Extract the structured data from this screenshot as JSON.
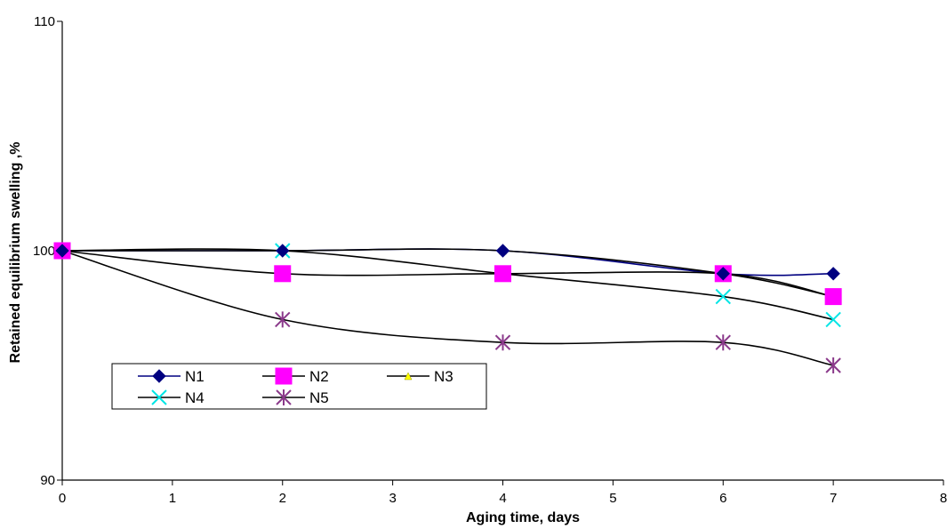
{
  "chart_data": {
    "type": "line",
    "title": "",
    "xlabel": "Aging time, days",
    "ylabel": "Retained equilibrium swelling ,%",
    "xlim": [
      0,
      8
    ],
    "ylim": [
      90,
      110
    ],
    "x_ticks": [
      "0",
      "1",
      "2",
      "3",
      "4",
      "5",
      "6",
      "7",
      "8"
    ],
    "y_ticks": [
      "90",
      "100",
      "110"
    ],
    "grid": false,
    "legend_position": "lower-left",
    "series": [
      {
        "name": "N1",
        "x": [
          0,
          2,
          4,
          6,
          7
        ],
        "y": [
          100,
          100,
          100,
          99,
          99
        ],
        "color": "#000080",
        "line_color": "#000080",
        "marker": "diamond"
      },
      {
        "name": "N2",
        "x": [
          0,
          2,
          4,
          6,
          7
        ],
        "y": [
          100,
          99,
          99,
          99,
          98
        ],
        "color": "#ff00ff",
        "line_color": "#000000",
        "marker": "square"
      },
      {
        "name": "N3",
        "x": [
          0,
          2,
          4,
          6,
          7
        ],
        "y": [
          100,
          100,
          100,
          99,
          98
        ],
        "color": "#ffff00",
        "line_color": "#000000",
        "marker": "triangle"
      },
      {
        "name": "N4",
        "x": [
          0,
          2,
          4,
          6,
          7
        ],
        "y": [
          100,
          100,
          99,
          98,
          97
        ],
        "color": "#00e5e5",
        "line_color": "#000000",
        "marker": "x"
      },
      {
        "name": "N5",
        "x": [
          0,
          2,
          4,
          6,
          7
        ],
        "y": [
          100,
          97,
          96,
          96,
          95
        ],
        "color": "#8b3a8b",
        "line_color": "#000000",
        "marker": "star"
      }
    ]
  }
}
